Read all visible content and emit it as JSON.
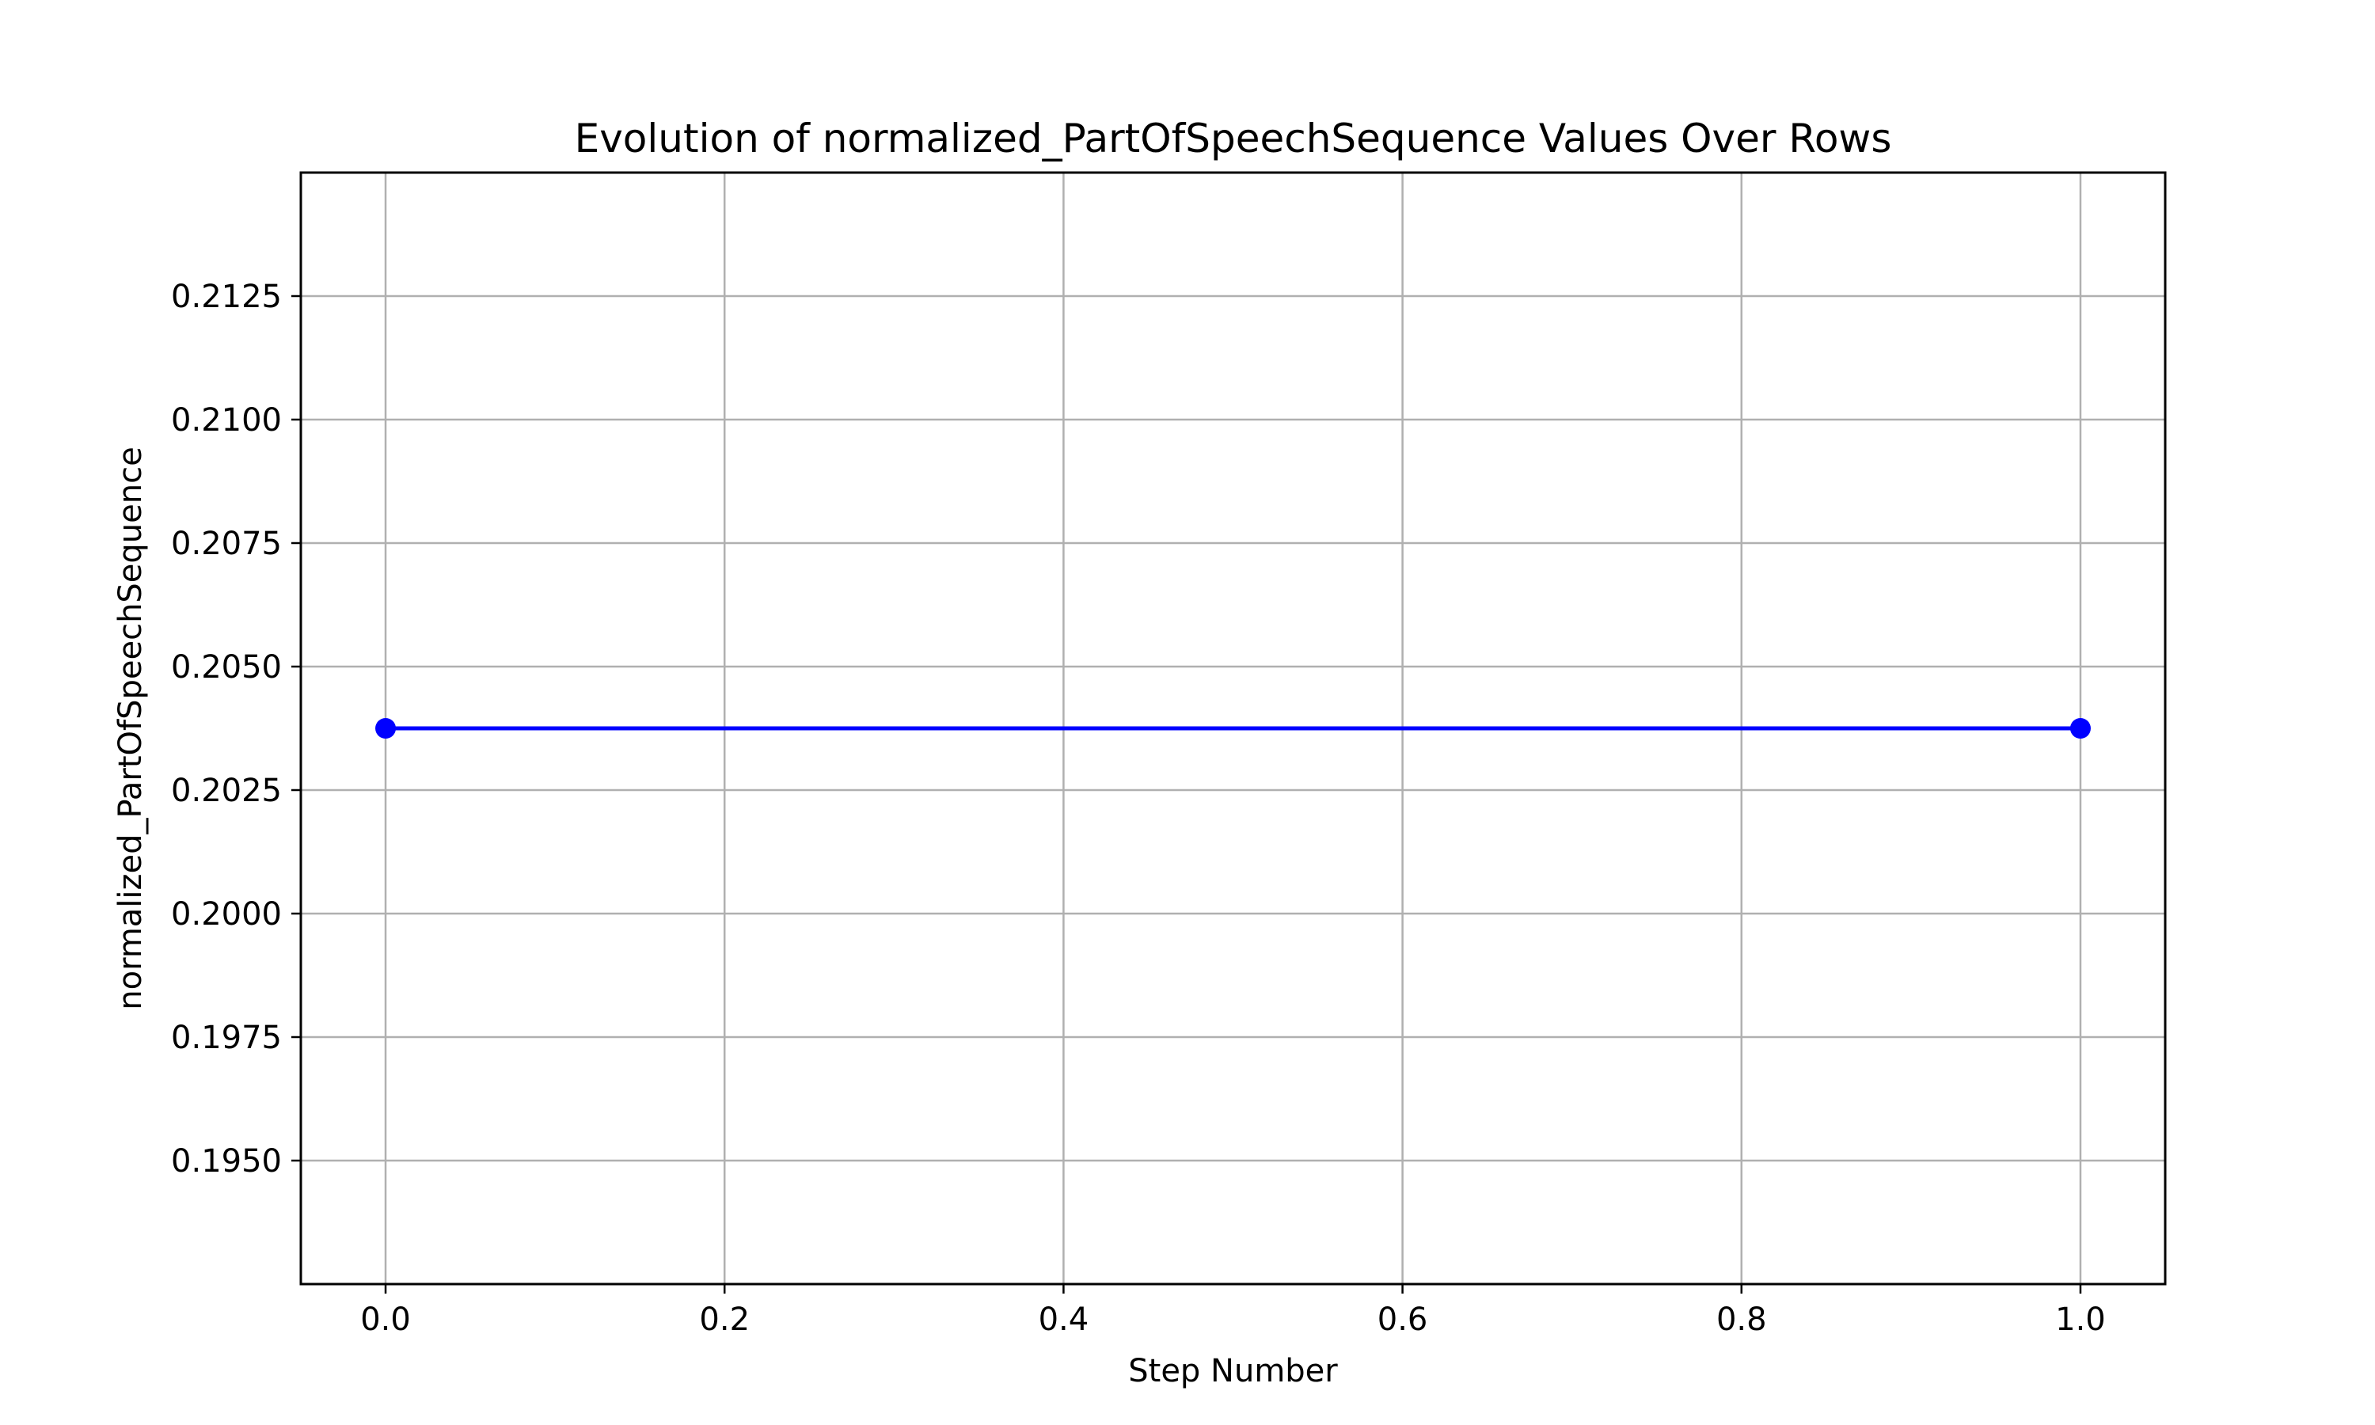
{
  "chart_data": {
    "type": "line",
    "title": "Evolution of normalized_PartOfSpeechSequence Values Over Rows",
    "xlabel": "Step Number",
    "ylabel": "normalized_PartOfSpeechSequence",
    "x_ticks": [
      "0.0",
      "0.2",
      "0.4",
      "0.6",
      "0.8",
      "1.0"
    ],
    "y_ticks": [
      "0.1950",
      "0.1975",
      "0.2000",
      "0.2025",
      "0.2050",
      "0.2075",
      "0.2100",
      "0.2125"
    ],
    "xlim": [
      -0.05,
      1.05
    ],
    "ylim": [
      0.1925,
      0.215
    ],
    "grid": true,
    "series": [
      {
        "color": "#0000ff",
        "marker": "circle",
        "x": [
          0,
          1
        ],
        "values": [
          0.20375,
          0.20375
        ]
      }
    ]
  }
}
